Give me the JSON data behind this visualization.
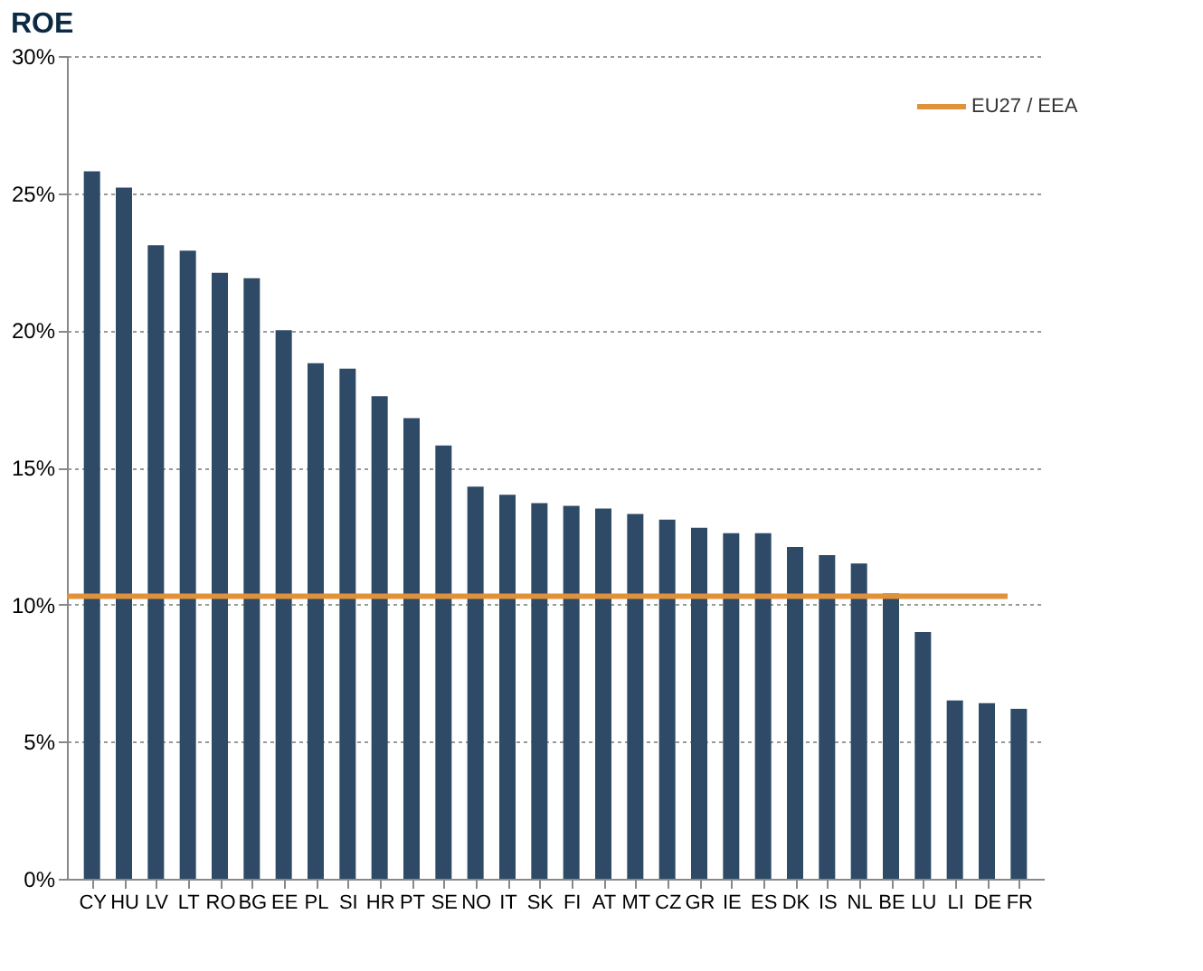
{
  "chart_data": {
    "type": "bar",
    "title": "ROE",
    "categories": [
      "CY",
      "HU",
      "LV",
      "LT",
      "RO",
      "BG",
      "EE",
      "PL",
      "SI",
      "HR",
      "PT",
      "SE",
      "NO",
      "IT",
      "SK",
      "FI",
      "AT",
      "MT",
      "CZ",
      "GR",
      "IE",
      "ES",
      "DK",
      "IS",
      "NL",
      "BE",
      "LU",
      "LI",
      "DE",
      "FR"
    ],
    "values": [
      25.8,
      25.2,
      23.1,
      22.9,
      22.1,
      21.9,
      20.0,
      18.8,
      18.6,
      17.6,
      16.8,
      15.8,
      14.3,
      14.0,
      13.7,
      13.6,
      13.5,
      13.3,
      13.1,
      12.8,
      12.6,
      12.6,
      12.1,
      11.8,
      11.5,
      10.4,
      9.0,
      6.5,
      6.4,
      6.2
    ],
    "color": "#2e4a66",
    "ylim": [
      0,
      30
    ],
    "yticks": [
      {
        "value": 0,
        "label": "0%"
      },
      {
        "value": 5,
        "label": "5%"
      },
      {
        "value": 10,
        "label": "10%"
      },
      {
        "value": 15,
        "label": "15%"
      },
      {
        "value": 20,
        "label": "20%"
      },
      {
        "value": 25,
        "label": "25%"
      },
      {
        "value": 30,
        "label": "30%"
      }
    ],
    "ref_lines": [
      {
        "axis": "y",
        "value": 10.3,
        "label": "EU27 / EEA",
        "color": "#e0913a"
      }
    ],
    "grid": "y",
    "legend": "top right"
  }
}
